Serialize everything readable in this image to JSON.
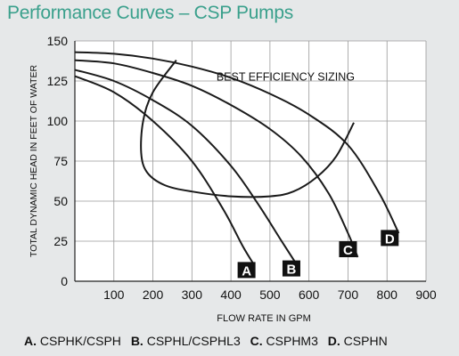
{
  "title": "Performance Curves – CSP Pumps",
  "chart_data": {
    "type": "line",
    "title": "Performance Curves – CSP Pumps",
    "xlabel": "FLOW RATE IN GPM",
    "ylabel": "TOTAL DYNAMIC HEAD IN FEET OF WATER",
    "xlim": [
      0,
      900
    ],
    "ylim": [
      0,
      150
    ],
    "x_ticks": [
      "100",
      "200",
      "300",
      "400",
      "500",
      "600",
      "700",
      "800",
      "900"
    ],
    "y_ticks": [
      "0",
      "25",
      "50",
      "75",
      "100",
      "125",
      "150"
    ],
    "grid": true,
    "annotation": "BEST EFFICIENCY SIZING",
    "series": [
      {
        "name": "A",
        "color": "#1a1a1a",
        "points": [
          [
            0,
            128
          ],
          [
            100,
            118
          ],
          [
            200,
            100
          ],
          [
            300,
            75
          ],
          [
            380,
            45
          ],
          [
            430,
            22
          ],
          [
            460,
            10
          ]
        ]
      },
      {
        "name": "B",
        "color": "#1a1a1a",
        "points": [
          [
            0,
            132
          ],
          [
            100,
            125
          ],
          [
            200,
            113
          ],
          [
            300,
            97
          ],
          [
            400,
            72
          ],
          [
            470,
            48
          ],
          [
            530,
            25
          ],
          [
            575,
            8
          ]
        ]
      },
      {
        "name": "C",
        "color": "#1a1a1a",
        "points": [
          [
            0,
            138
          ],
          [
            100,
            136
          ],
          [
            200,
            130
          ],
          [
            300,
            122
          ],
          [
            400,
            110
          ],
          [
            500,
            95
          ],
          [
            580,
            78
          ],
          [
            650,
            55
          ],
          [
            700,
            30
          ],
          [
            725,
            15
          ]
        ]
      },
      {
        "name": "D",
        "color": "#1a1a1a",
        "points": [
          [
            0,
            143
          ],
          [
            100,
            142
          ],
          [
            200,
            139
          ],
          [
            300,
            134
          ],
          [
            400,
            127
          ],
          [
            500,
            117
          ],
          [
            600,
            104
          ],
          [
            700,
            85
          ],
          [
            780,
            55
          ],
          [
            830,
            30
          ]
        ]
      },
      {
        "name": "",
        "color": "#1a1a1a",
        "points": [
          [
            260,
            138
          ],
          [
            200,
            118
          ],
          [
            175,
            100
          ],
          [
            170,
            80
          ],
          [
            185,
            68
          ],
          [
            230,
            60
          ],
          [
            300,
            56
          ],
          [
            400,
            53
          ],
          [
            500,
            53
          ],
          [
            560,
            56
          ],
          [
            620,
            65
          ],
          [
            670,
            78
          ],
          [
            715,
            99
          ]
        ]
      }
    ],
    "curve_labels": [
      {
        "name": "A",
        "x": 440,
        "y": 7
      },
      {
        "name": "B",
        "x": 555,
        "y": 8
      },
      {
        "name": "C",
        "x": 700,
        "y": 20
      },
      {
        "name": "D",
        "x": 807,
        "y": 27
      }
    ]
  },
  "legend": [
    {
      "letter": "A.",
      "text": "CSPHK/CSPH"
    },
    {
      "letter": "B.",
      "text": "CSPHL/CSPHL3"
    },
    {
      "letter": "C.",
      "text": "CSPHM3"
    },
    {
      "letter": "D.",
      "text": "CSPHN"
    }
  ]
}
